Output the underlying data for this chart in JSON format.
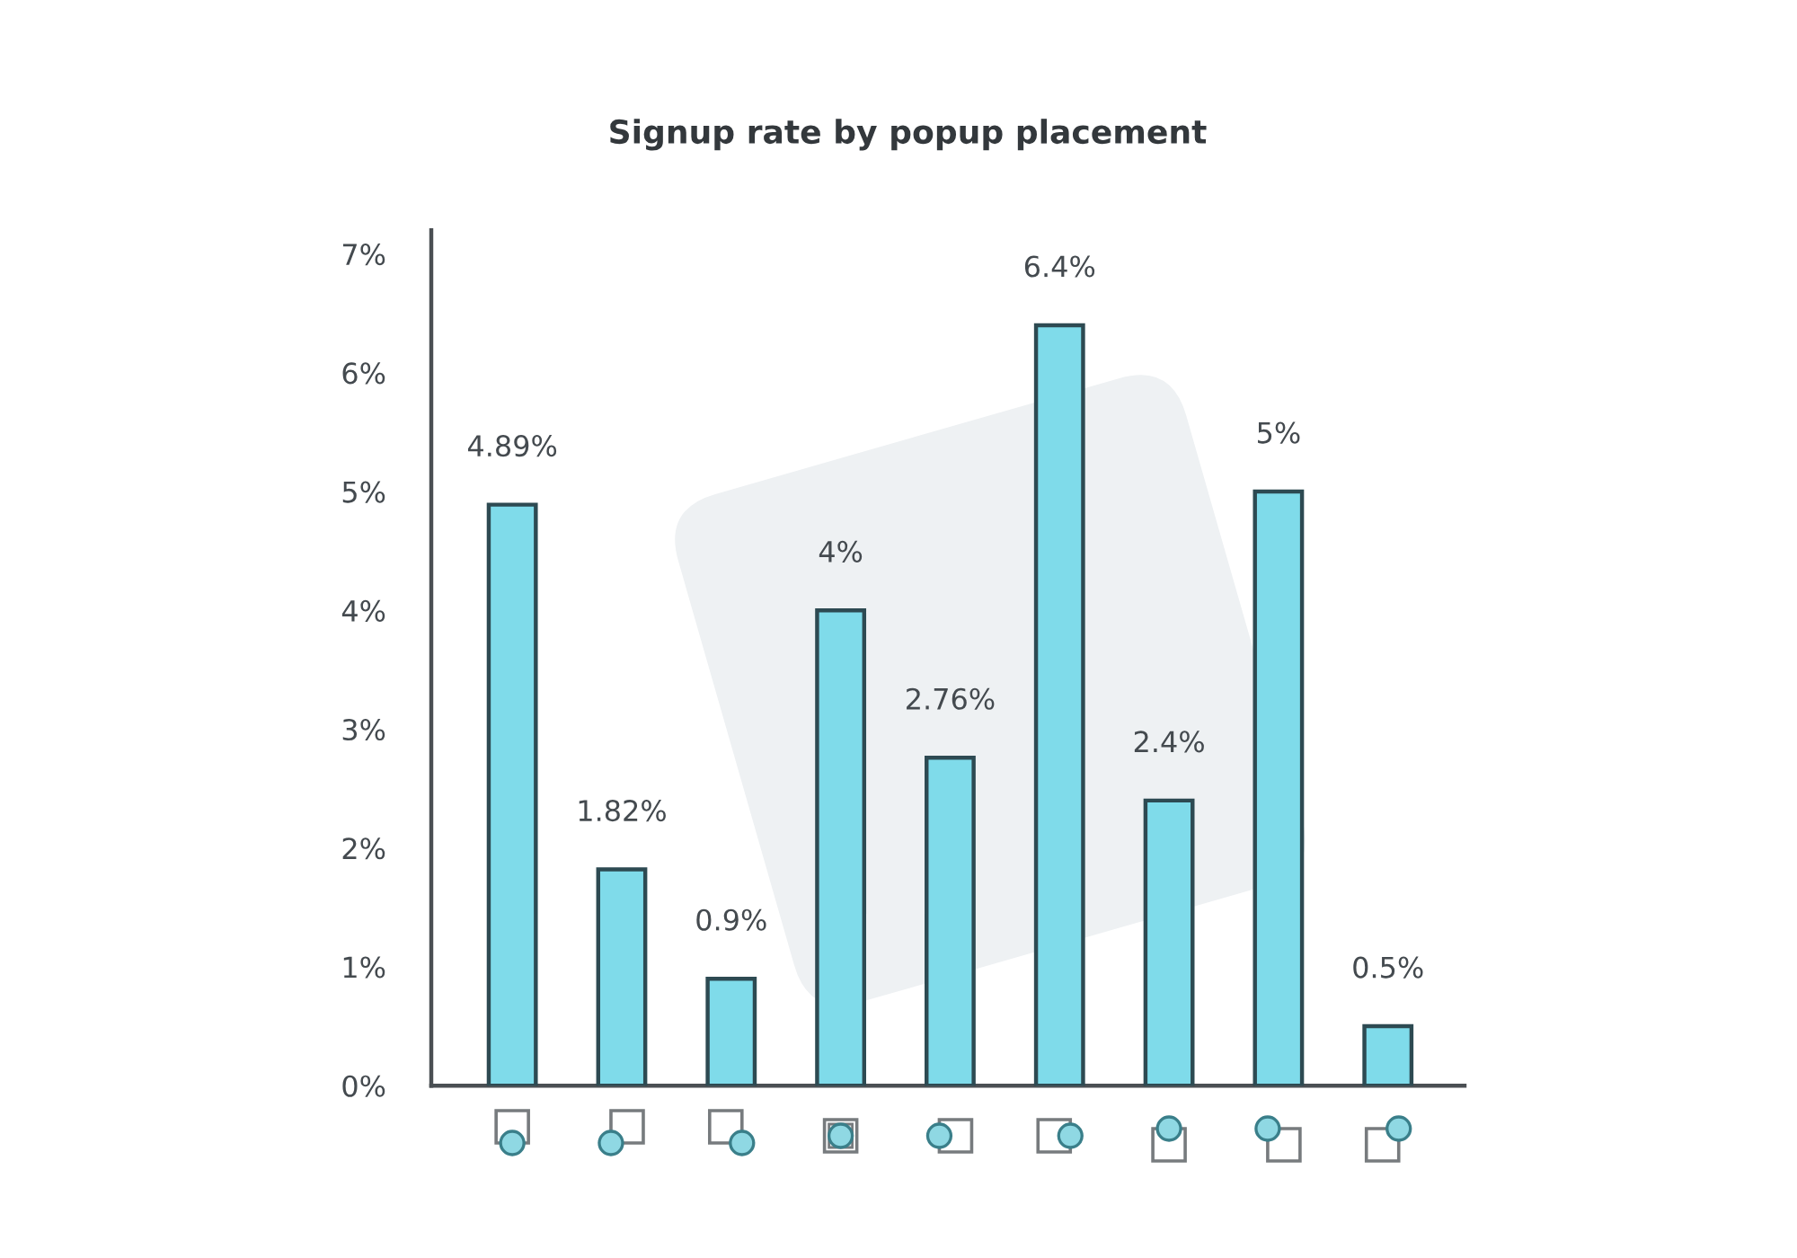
{
  "chart_data": {
    "type": "bar",
    "title": "Signup rate by popup placement",
    "categories": [
      null,
      null,
      null,
      null,
      null,
      null,
      null,
      null,
      null
    ],
    "values": [
      4.89,
      1.82,
      0.9,
      4,
      2.76,
      6.4,
      2.4,
      5,
      0.5
    ],
    "value_labels": [
      "4.89%",
      "1.82%",
      "0.9%",
      "4%",
      "2.76%",
      "6.4%",
      "2.4%",
      "5%",
      "0.5%"
    ],
    "color": "#7fdbea",
    "ylim": [
      0,
      7.2
    ],
    "yticks": [
      {
        "value": 0,
        "label": "0%"
      },
      {
        "value": 1,
        "label": "1%"
      },
      {
        "value": 2,
        "label": "2%"
      },
      {
        "value": 3,
        "label": "3%"
      },
      {
        "value": 4,
        "label": "4%"
      },
      {
        "value": 5,
        "label": "5%"
      },
      {
        "value": 6,
        "label": "6%"
      },
      {
        "value": 7,
        "label": "7%"
      }
    ]
  }
}
